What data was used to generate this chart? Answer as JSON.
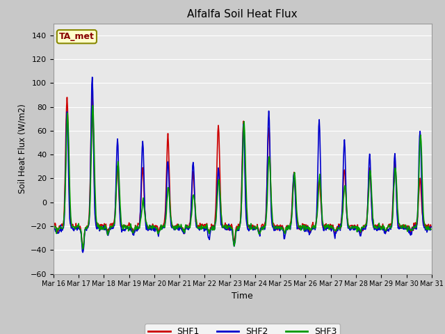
{
  "title": "Alfalfa Soil Heat Flux",
  "ylabel": "Soil Heat Flux (W/m2)",
  "xlabel": "Time",
  "ylim": [
    -60,
    150
  ],
  "yticks": [
    -60,
    -40,
    -20,
    0,
    20,
    40,
    60,
    80,
    100,
    120,
    140
  ],
  "xlim": [
    16,
    31
  ],
  "xtick_positions": [
    16,
    17,
    18,
    19,
    20,
    21,
    22,
    23,
    24,
    25,
    26,
    27,
    28,
    29,
    30,
    31
  ],
  "xtick_labels": [
    "Mar 16",
    "Mar 17",
    "Mar 18",
    "Mar 19",
    "Mar 20",
    "Mar 21",
    "Mar 22",
    "Mar 23",
    "Mar 24",
    "Mar 25",
    "Mar 26",
    "Mar 27",
    "Mar 28",
    "Mar 29",
    "Mar 30",
    "Mar 31"
  ],
  "colors": {
    "SHF1": "#cc0000",
    "SHF2": "#0000cc",
    "SHF3": "#009900",
    "fig_bg": "#c8c8c8",
    "plot_bg": "#e8e8e8",
    "grid_color": "#ffffff",
    "annotation_bg": "#ffffcc",
    "annotation_text": "#880000",
    "annotation_border": "#888800"
  },
  "annotation_text": "TA_met",
  "line_width": 1.2,
  "figsize": [
    6.4,
    4.8
  ],
  "dpi": 100
}
